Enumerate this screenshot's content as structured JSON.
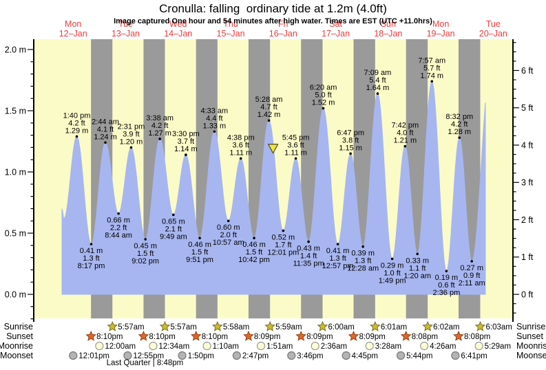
{
  "title": "Cronulla: falling  ordinary tide at 1.2m (4.0ft)",
  "subtitle": "Image captured One hour and 54 minutes after high water. Times are EST (UTC +11.0hrs)",
  "days": [
    {
      "name": "Mon",
      "date": "12–Jan"
    },
    {
      "name": "Tue",
      "date": "13–Jan"
    },
    {
      "name": "Wed",
      "date": "14–Jan"
    },
    {
      "name": "Thu",
      "date": "15–Jan"
    },
    {
      "name": "Fri",
      "date": "16–Jan"
    },
    {
      "name": "Sat",
      "date": "17–Jan"
    },
    {
      "name": "Sun",
      "date": "18–Jan"
    },
    {
      "name": "Mon",
      "date": "19–Jan"
    },
    {
      "name": "Tue",
      "date": "20–Jan"
    }
  ],
  "axes": {
    "left_ticks": [
      "0.0 m",
      "0.5 m",
      "1.0 m",
      "1.5 m",
      "2.0 m"
    ],
    "right_ticks": [
      "0 ft",
      "1 ft",
      "2 ft",
      "3 ft",
      "4 ft",
      "5 ft",
      "6 ft"
    ]
  },
  "chart_data": {
    "type": "area",
    "title": "Cronulla: falling  ordinary tide at 1.2m (4.0ft)",
    "x_range": "Mon 12-Jan 00:00 to Tue 20-Jan evening (t = hours after Mon 12-Jan 00:00)",
    "ylim_m": [
      0,
      2.0
    ],
    "ylim_ft": [
      0,
      6
    ],
    "tide_events": [
      {
        "kind": "high",
        "time": "1:40 pm",
        "m": "1.29",
        "ft": "4.2",
        "t": 13.667
      },
      {
        "kind": "low",
        "time": "8:17 pm",
        "m": "0.41",
        "ft": "1.3",
        "t": 20.283
      },
      {
        "kind": "high",
        "time": "2:44 am",
        "m": "1.24",
        "ft": "4.1",
        "t": 26.733
      },
      {
        "kind": "low",
        "time": "8:44 am",
        "m": "0.66",
        "ft": "2.2",
        "t": 32.733
      },
      {
        "kind": "high",
        "time": "2:31 pm",
        "m": "1.20",
        "ft": "3.9",
        "t": 38.517
      },
      {
        "kind": "low",
        "time": "9:02 pm",
        "m": "0.45",
        "ft": "1.5",
        "t": 45.033
      },
      {
        "kind": "high",
        "time": "3:38 am",
        "m": "1.27",
        "ft": "4.2",
        "t": 51.633
      },
      {
        "kind": "low",
        "time": "9:49 am",
        "m": "0.65",
        "ft": "2.1",
        "t": 57.817
      },
      {
        "kind": "high",
        "time": "3:30 pm",
        "m": "1.14",
        "ft": "3.7",
        "t": 63.5
      },
      {
        "kind": "low",
        "time": "9:51 pm",
        "m": "0.46",
        "ft": "1.5",
        "t": 69.85
      },
      {
        "kind": "high",
        "time": "4:33 am",
        "m": "1.33",
        "ft": "4.4",
        "t": 76.55
      },
      {
        "kind": "low",
        "time": "10:57 am",
        "m": "0.60",
        "ft": "2.0",
        "t": 82.95
      },
      {
        "kind": "high",
        "time": "4:38 pm",
        "m": "1.11",
        "ft": "3.6",
        "t": 88.633
      },
      {
        "kind": "low",
        "time": "10:42 pm",
        "m": "0.46",
        "ft": "1.5",
        "t": 94.7
      },
      {
        "kind": "high",
        "time": "5:28 am",
        "m": "1.42",
        "ft": "4.7",
        "t": 101.467
      },
      {
        "kind": "low",
        "time": "12:01 pm",
        "m": "0.52",
        "ft": "1.7",
        "t": 108.017
      },
      {
        "kind": "high",
        "time": "5:45 pm",
        "m": "1.11",
        "ft": "3.6",
        "t": 113.75
      },
      {
        "kind": "low",
        "time": "11:35 pm",
        "m": "0.43",
        "ft": "1.4",
        "t": 119.583
      },
      {
        "kind": "high",
        "time": "6:20 am",
        "m": "1.52",
        "ft": "5.0",
        "t": 126.333
      },
      {
        "kind": "low",
        "time": "12:57 pm",
        "m": "0.41",
        "ft": "1.3",
        "t": 132.95
      },
      {
        "kind": "high",
        "time": "6:47 pm",
        "m": "1.15",
        "ft": "3.8",
        "t": 138.783
      },
      {
        "kind": "low",
        "time": "12:28 am",
        "m": "0.39",
        "ft": "1.3",
        "t": 144.467
      },
      {
        "kind": "high",
        "time": "7:09 am",
        "m": "1.64",
        "ft": "5.4",
        "t": 151.15
      },
      {
        "kind": "low",
        "time": "1:49 pm",
        "m": "0.29",
        "ft": "1.0",
        "t": 157.817
      },
      {
        "kind": "high",
        "time": "7:42 pm",
        "m": "1.21",
        "ft": "4.0",
        "t": 163.7
      },
      {
        "kind": "low",
        "time": "1:20 am",
        "m": "0.33",
        "ft": "1.1",
        "t": 169.333
      },
      {
        "kind": "high",
        "time": "7:57 am",
        "m": "1.74",
        "ft": "5.7",
        "t": 175.95
      },
      {
        "kind": "low",
        "time": "2:36 pm",
        "m": "0.19",
        "ft": "0.6",
        "t": 182.6
      },
      {
        "kind": "high",
        "time": "8:32 pm",
        "m": "1.28",
        "ft": "4.2",
        "t": 188.533
      },
      {
        "kind": "low",
        "time": "2:11 am",
        "m": "0.27",
        "ft": "0.9",
        "t": 194.183
      }
    ],
    "curve_start_anchors": [
      {
        "t": 6.9,
        "m": 0.7
      },
      {
        "t": 7.8,
        "m": 0.62
      }
    ],
    "curve_end_anchors": [
      {
        "t": 202.8,
        "m": 1.85
      }
    ],
    "curve_clip_end_t": 200.4,
    "current_marker": {
      "t": 103.37,
      "m": 1.19
    }
  },
  "sun_moon": {
    "rows": [
      {
        "id": "sunrise",
        "label": "Sunrise",
        "icon": "sunrise-star",
        "entries": [
          {
            "time": "5:57am",
            "t": 29.95
          },
          {
            "time": "5:57am",
            "t": 53.95
          },
          {
            "time": "5:58am",
            "t": 77.967
          },
          {
            "time": "5:59am",
            "t": 101.983
          },
          {
            "time": "6:00am",
            "t": 126.0
          },
          {
            "time": "6:01am",
            "t": 150.017
          },
          {
            "time": "6:02am",
            "t": 174.033
          },
          {
            "time": "6:03am",
            "t": 198.05
          }
        ]
      },
      {
        "id": "sunset",
        "label": "Sunset",
        "icon": "sunset-star",
        "entries": [
          {
            "time": "8:10pm",
            "t": 20.167
          },
          {
            "time": "8:10pm",
            "t": 44.167
          },
          {
            "time": "8:10pm",
            "t": 68.167
          },
          {
            "time": "8:09pm",
            "t": 92.15
          },
          {
            "time": "8:09pm",
            "t": 116.15
          },
          {
            "time": "8:09pm",
            "t": 140.15
          },
          {
            "time": "8:08pm",
            "t": 164.133
          },
          {
            "time": "8:08pm",
            "t": 188.133
          }
        ]
      },
      {
        "id": "moonrise",
        "label": "Moonrise",
        "icon": "moonrise-circle",
        "entries": [
          {
            "time": "12:00am",
            "t": 24.0
          },
          {
            "time": "12:34am",
            "t": 48.567
          },
          {
            "time": "1:10am",
            "t": 73.167
          },
          {
            "time": "1:51am",
            "t": 97.85
          },
          {
            "time": "2:36am",
            "t": 122.6
          },
          {
            "time": "3:28am",
            "t": 147.467
          },
          {
            "time": "4:26am",
            "t": 172.433
          },
          {
            "time": "5:29am",
            "t": 197.483
          }
        ]
      },
      {
        "id": "moonset",
        "label": "Moonset",
        "icon": "moonset-circle",
        "entries": [
          {
            "time": "12:01pm",
            "t": 12.017
          },
          {
            "time": "12:55pm",
            "t": 36.917
          },
          {
            "time": "1:50pm",
            "t": 61.833
          },
          {
            "time": "2:47pm",
            "t": 86.783
          },
          {
            "time": "3:46pm",
            "t": 111.767
          },
          {
            "time": "4:45pm",
            "t": 136.75
          },
          {
            "time": "5:44pm",
            "t": 161.733
          },
          {
            "time": "6:41pm",
            "t": 186.683
          }
        ]
      }
    ],
    "moon_phase": {
      "text": "Last Quarter | 8:48pm",
      "t": 44.8
    }
  },
  "colors": {
    "day_band": "#fbfbc8",
    "night_band": "#9a9a9a",
    "tide_fill": "#a7b6f0",
    "day_label": "#ee3b3b",
    "axis": "#000000",
    "text": "#000000",
    "sunrise_star": "#c9ba31",
    "sunrise_star_stroke": "#7a6f1e",
    "sunset_star": "#e0662a",
    "sunset_star_stroke": "#993f12",
    "moonrise_fill": "#ffffd6",
    "moonrise_stroke": "#999999",
    "moonset_fill": "#b4b4b4",
    "moonset_stroke": "#777777",
    "marker_fill": "#f2e43c",
    "marker_stroke": "#55552a"
  }
}
